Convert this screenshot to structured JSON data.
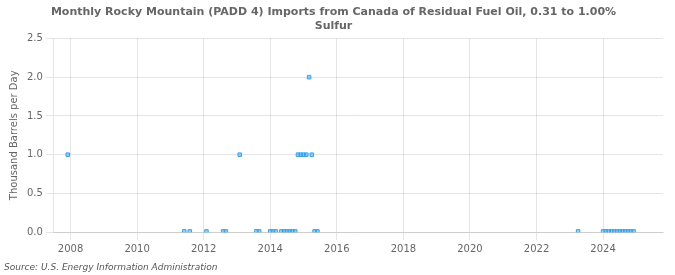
{
  "chart_data": {
    "type": "scatter",
    "title": "Monthly Rocky Mountain (PADD 4) Imports from Canada of Residual Fuel Oil, 0.31 to 1.00%\nSulfur",
    "ylabel": "Thousand Barrels per Day",
    "annotations": [
      "Source: U.S. Energy Information Administration"
    ],
    "marker": "square",
    "grid": true,
    "xlim": [
      2007.5,
      2025.8
    ],
    "xticks": [
      2008,
      2010,
      2012,
      2014,
      2016,
      2018,
      2020,
      2022,
      2024
    ],
    "ylim": [
      0,
      2.5
    ],
    "yticks": [
      {
        "value": 0.0,
        "label": "0.0"
      },
      0.5,
      {
        "value": 1.0,
        "label": "1.0"
      },
      1.5,
      {
        "value": 2.0,
        "label": "2.0"
      },
      2.5
    ],
    "x": [
      2007.917,
      2011.417,
      2011.583,
      2012.083,
      2012.583,
      2012.667,
      2013.083,
      2013.583,
      2013.667,
      2014.0,
      2014.083,
      2014.167,
      2014.333,
      2014.417,
      2014.5,
      2014.583,
      2014.667,
      2014.75,
      2014.833,
      2014.917,
      2015.0,
      2015.083,
      2015.167,
      2015.25,
      2015.333,
      2015.417,
      2023.25,
      2024.0,
      2024.083,
      2024.167,
      2024.25,
      2024.333,
      2024.417,
      2024.5,
      2024.583,
      2024.667,
      2024.75,
      2024.833,
      2024.917
    ],
    "values": [
      1.0,
      0.01,
      0.01,
      0.01,
      0.01,
      0.01,
      1.0,
      0.01,
      0.01,
      0.01,
      0.01,
      0.01,
      0.01,
      0.01,
      0.01,
      0.01,
      0.01,
      0.01,
      1.0,
      1.0,
      1.0,
      1.0,
      2.0,
      1.0,
      0.01,
      0.01,
      0.01,
      0.01,
      0.01,
      0.01,
      0.01,
      0.01,
      0.01,
      0.01,
      0.01,
      0.01,
      0.01,
      0.01,
      0.01
    ]
  }
}
